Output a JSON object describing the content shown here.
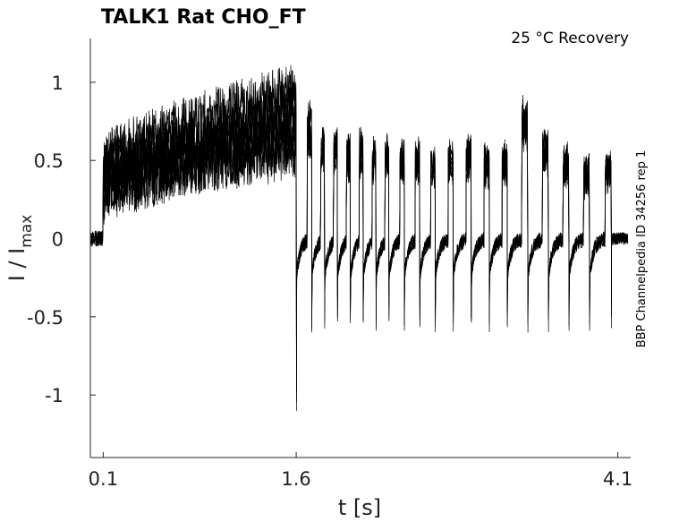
{
  "chart_data": {
    "type": "line",
    "title": "TALK1  Rat  CHO_FT",
    "subtitle": "25 °C  Recovery",
    "side_note": "BBP Channelpedia ID 34256 rep 1",
    "xlabel": "t [s]",
    "ylabel_main": "I / I",
    "ylabel_sub": "max",
    "xlim": [
      0.0,
      4.2
    ],
    "ylim": [
      -1.4,
      1.28
    ],
    "x_ticks": [
      0.1,
      1.6,
      4.1
    ],
    "x_tick_labels": [
      "0.1",
      "1.6",
      "4.1"
    ],
    "y_ticks": [
      1,
      0.5,
      0,
      -0.5,
      -1
    ],
    "y_tick_labels": [
      "1",
      "0.5",
      "0",
      "-0.5",
      "-1"
    ],
    "grid": false,
    "legend": "none",
    "trace_color": "#000000",
    "protocol": {
      "baseline_start": 0.0,
      "step_on": 0.1,
      "step_off": 1.6,
      "end": 4.1,
      "recovery_pulse_ends": [
        1.72,
        1.82,
        1.92,
        2.02,
        2.12,
        2.22,
        2.32,
        2.44,
        2.56,
        2.68,
        2.82,
        2.96,
        3.1,
        3.24,
        3.4,
        3.56,
        3.72,
        3.88,
        4.05
      ]
    },
    "series": [
      {
        "values": {
          "step_start": 0.4,
          "step_end": 0.85,
          "pulses": [
            0.72,
            0.6,
            0.62,
            0.55,
            0.58,
            0.52,
            0.55,
            0.5,
            0.52,
            0.48,
            0.5,
            0.55,
            0.48,
            0.5,
            0.72,
            0.55,
            0.45,
            0.42,
            0.45
          ]
        }
      },
      {
        "values": {
          "step_start": 0.3,
          "step_end": 0.75,
          "pulses": [
            0.68,
            0.58,
            0.6,
            0.52,
            0.55,
            0.5,
            0.52,
            0.48,
            0.5,
            0.45,
            0.48,
            0.52,
            0.46,
            0.48,
            0.76,
            0.58,
            0.48,
            0.4,
            0.42
          ]
        }
      },
      {
        "values": {
          "step_start": 0.25,
          "step_end": 0.62,
          "pulses": [
            0.62,
            0.55,
            0.56,
            0.5,
            0.52,
            0.48,
            0.5,
            0.46,
            0.47,
            0.44,
            0.46,
            0.5,
            0.44,
            0.46,
            0.8,
            0.6,
            0.5,
            0.38,
            0.44
          ]
        }
      },
      {
        "values": {
          "step_start": 0.5,
          "step_end": 0.95,
          "pulses": [
            0.78,
            0.62,
            0.58,
            0.56,
            0.6,
            0.54,
            0.57,
            0.52,
            0.54,
            0.5,
            0.52,
            0.56,
            0.5,
            0.52,
            0.7,
            0.56,
            0.46,
            0.44,
            0.46
          ]
        }
      },
      {
        "values": {
          "step_start": 0.35,
          "step_end": 0.55,
          "pulses": [
            0.55,
            0.5,
            0.52,
            0.46,
            0.5,
            0.45,
            0.48,
            0.44,
            0.45,
            0.42,
            0.44,
            0.48,
            0.42,
            0.44,
            0.66,
            0.5,
            0.44,
            0.36,
            0.4
          ]
        }
      },
      {
        "values": {
          "step_start": 0.45,
          "step_end": 0.7,
          "pulses": [
            0.66,
            0.56,
            0.54,
            0.5,
            0.54,
            0.48,
            0.5,
            0.48,
            0.5,
            0.46,
            0.48,
            0.5,
            0.45,
            0.47,
            0.74,
            0.54,
            0.47,
            0.41,
            0.43
          ]
        }
      }
    ]
  }
}
